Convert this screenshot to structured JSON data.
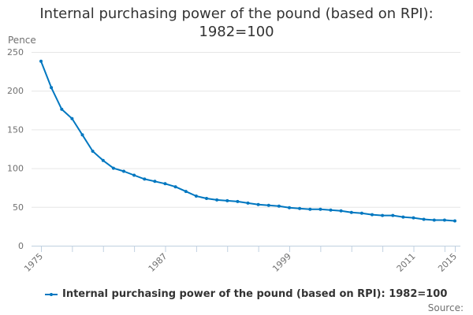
{
  "title": {
    "line1": "Internal purchasing power of the pound (based on RPI):",
    "line2": "1982=100"
  },
  "y_axis_label": "Pence",
  "legend": {
    "label": "Internal purchasing power of the pound (based on RPI): 1982=100",
    "color": "#0077c0"
  },
  "source_label": "Source:",
  "chart_data": {
    "type": "line",
    "title": "Internal purchasing power of the pound (based on RPI): 1982=100",
    "xlabel": "",
    "ylabel": "Pence",
    "ylim": [
      0,
      250
    ],
    "xlim": [
      1975,
      2015
    ],
    "y_ticks": [
      0,
      50,
      100,
      150,
      200,
      250
    ],
    "x_tick_labels": [
      "1975",
      "1987",
      "1999",
      "2011",
      "2015"
    ],
    "x_tick_marks_every_years": 3,
    "grid": "horizontal",
    "legend_position": "bottom",
    "x": [
      1975,
      1976,
      1977,
      1978,
      1979,
      1980,
      1981,
      1982,
      1983,
      1984,
      1985,
      1986,
      1987,
      1988,
      1989,
      1990,
      1991,
      1992,
      1993,
      1994,
      1995,
      1996,
      1997,
      1998,
      1999,
      2000,
      2001,
      2002,
      2003,
      2004,
      2005,
      2006,
      2007,
      2008,
      2009,
      2010,
      2011,
      2012,
      2013,
      2014,
      2015
    ],
    "series": [
      {
        "name": "Internal purchasing power of the pound (based on RPI): 1982=100",
        "color": "#0077c0",
        "values": [
          238,
          204,
          176,
          164,
          143,
          122,
          110,
          100,
          96,
          91,
          86,
          83,
          80,
          76,
          70,
          64,
          61,
          59,
          58,
          57,
          55,
          53,
          52,
          51,
          49,
          48,
          47,
          47,
          46,
          45,
          43,
          42,
          40,
          39,
          39,
          37,
          36,
          34,
          33,
          33,
          32
        ]
      }
    ]
  }
}
